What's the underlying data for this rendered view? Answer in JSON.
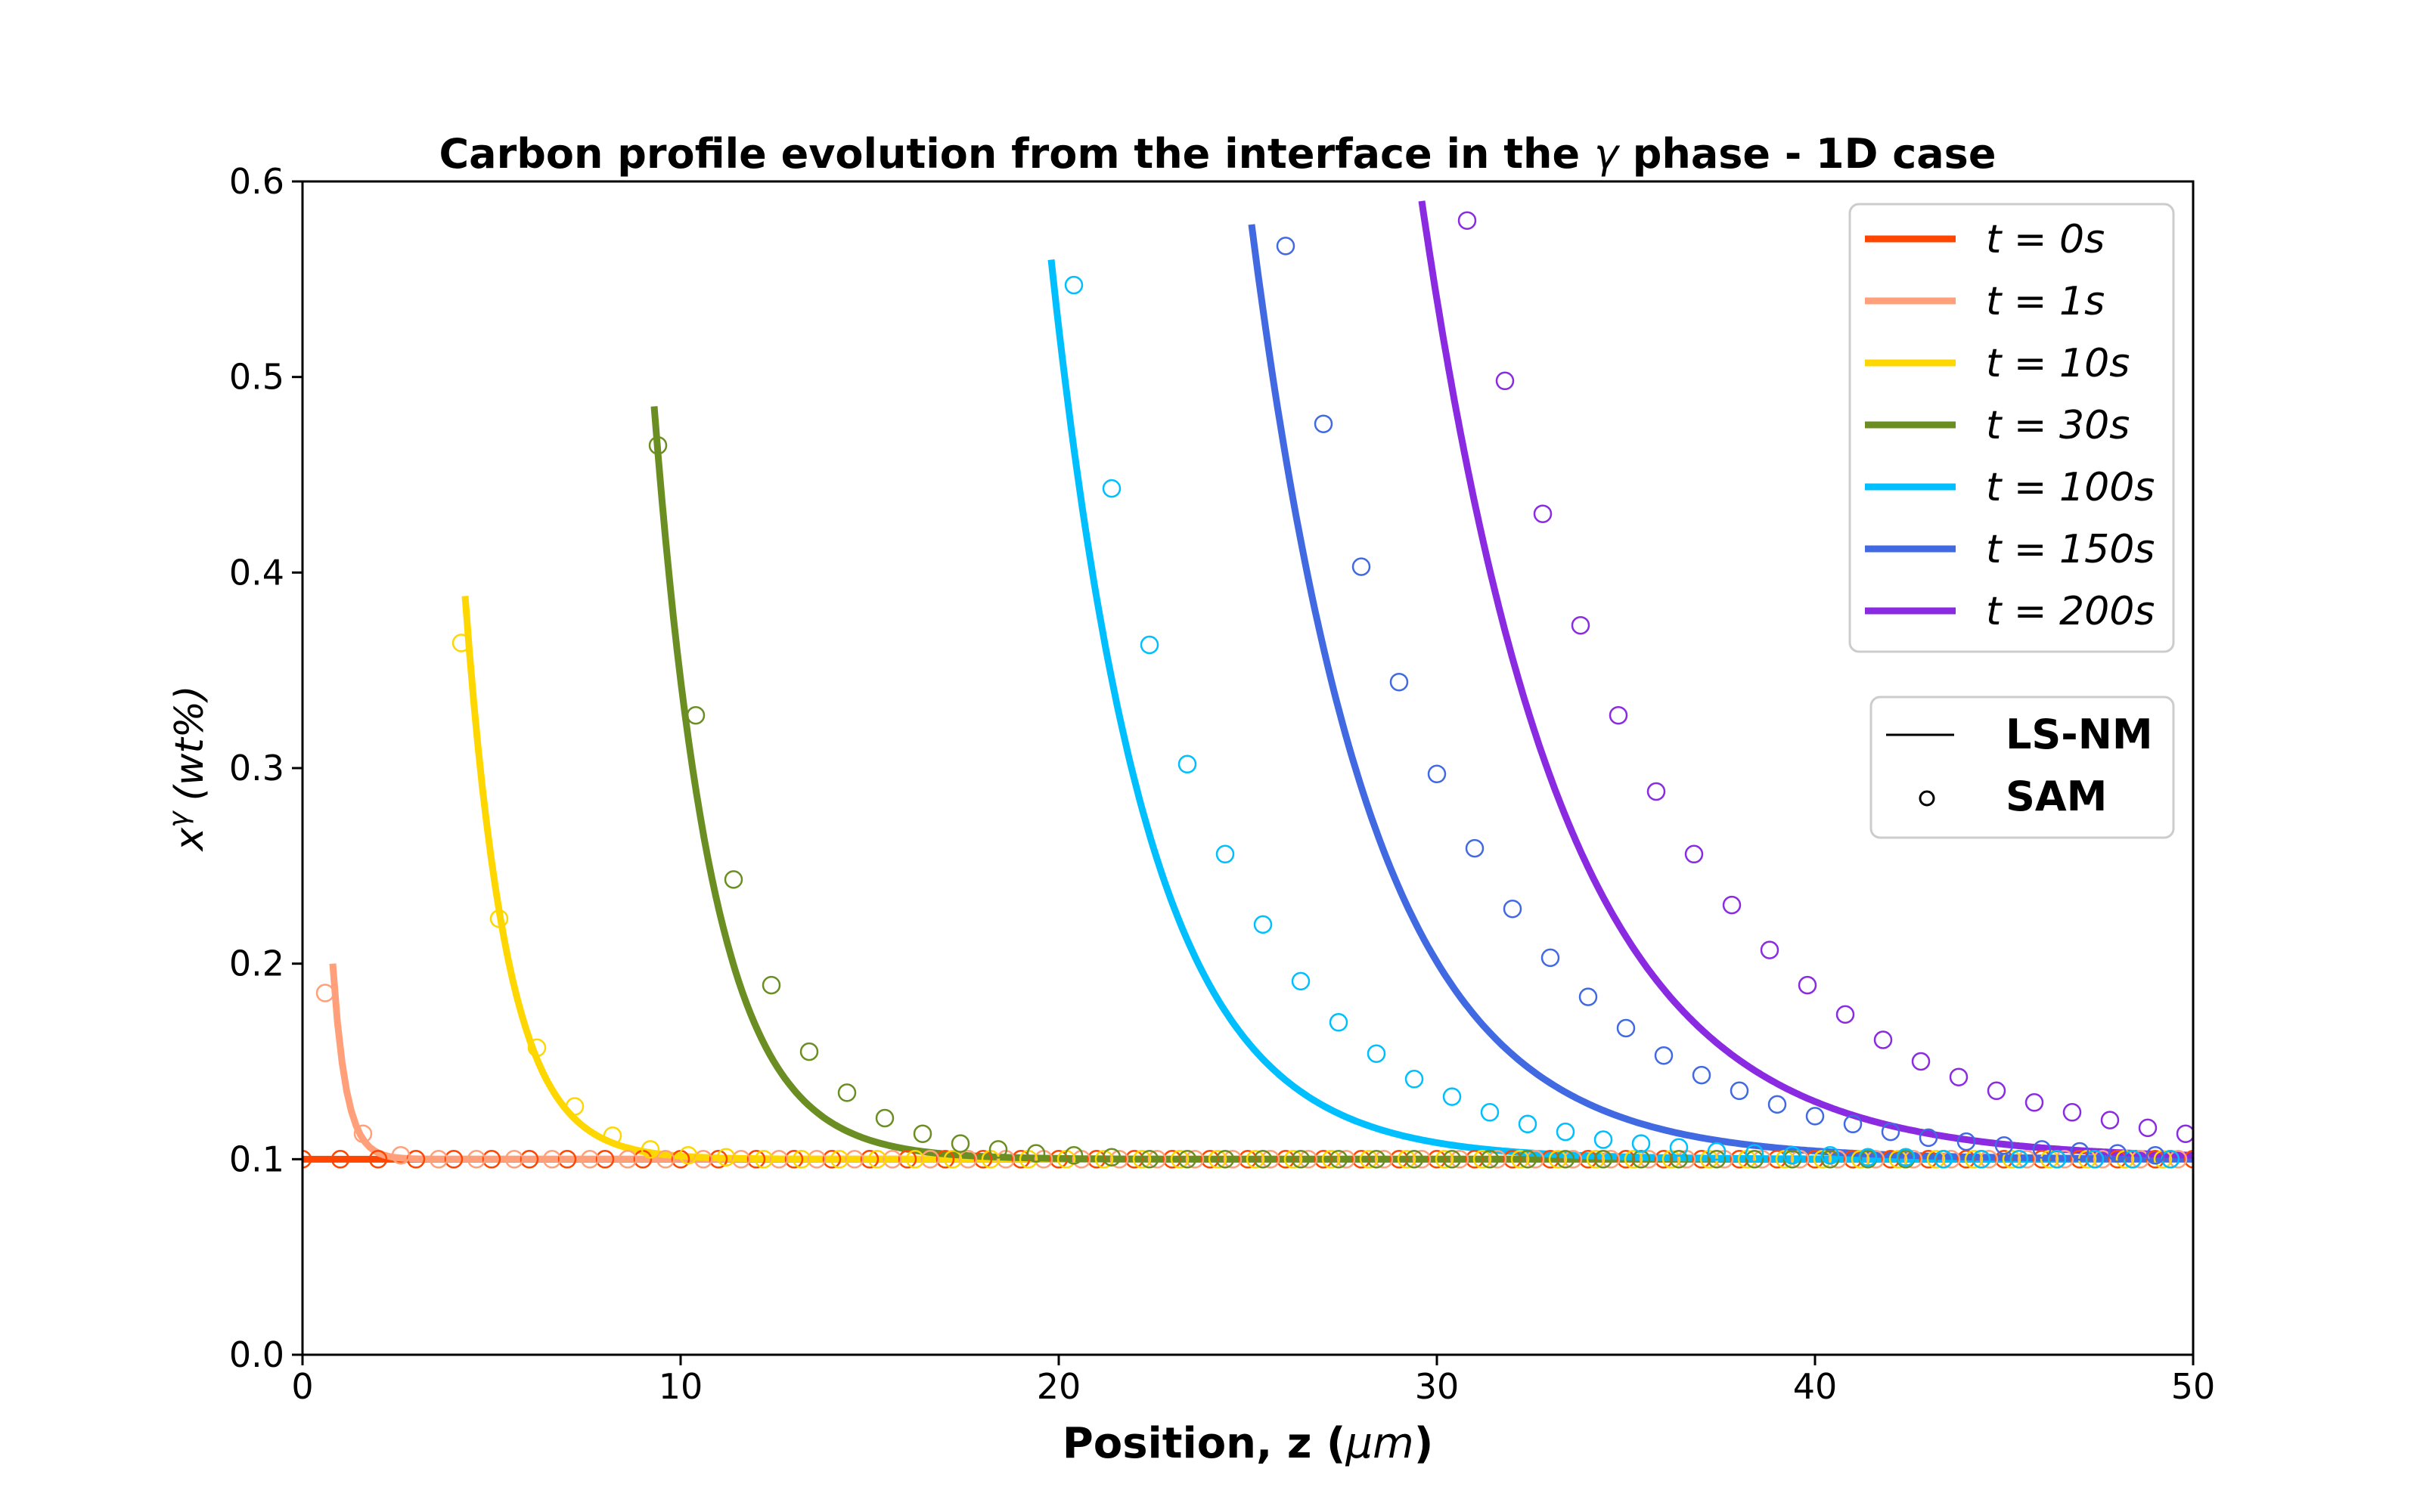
{
  "chart_data": {
    "type": "line",
    "title_prefix": "Carbon profile evolution from the interface in the",
    "title_symbol": "γ",
    "title_suffix": "phase - 1D case",
    "xlabel_prefix": "Position, z (",
    "xlabel_unit": "μm",
    "xlabel_suffix": ")",
    "ylabel_var": "x",
    "ylabel_sup": "γ",
    "ylabel_unit": "(wt%)",
    "xlim": [
      0,
      50
    ],
    "ylim": [
      0.0,
      0.6
    ],
    "xticks": [
      0,
      10,
      20,
      30,
      40,
      50
    ],
    "yticks": [
      0.0,
      0.1,
      0.2,
      0.3,
      0.4,
      0.5,
      0.6
    ],
    "xtick_labels": [
      "0",
      "10",
      "20",
      "30",
      "40",
      "50"
    ],
    "ytick_labels": [
      "0.0",
      "0.1",
      "0.2",
      "0.3",
      "0.4",
      "0.5",
      "0.6"
    ],
    "baseline": 0.1,
    "legend_position": "top-right",
    "series": [
      {
        "name": "t = 0s",
        "t_label": "0s",
        "color": "#ff4500",
        "front": 0.0,
        "peak": 0.1,
        "decay_length": 1.0,
        "markers_x": [
          0.0,
          1.0,
          2.0,
          3.0,
          4.0,
          5.0,
          6.0,
          7.0,
          8.0,
          9.0,
          10.0,
          11.0,
          12.0,
          13.0,
          14.0,
          15.0,
          16.0,
          17.0,
          18.0,
          19.0,
          20.0,
          21.0,
          22.0,
          23.0,
          24.0,
          25.0,
          26.0,
          27.0,
          28.0,
          29.0,
          30.0,
          31.0,
          32.0,
          33.0,
          34.0,
          35.0,
          36.0,
          37.0,
          38.0,
          39.0,
          40.0,
          41.0,
          42.0,
          43.0,
          44.0,
          45.0,
          46.0,
          47.0,
          48.0,
          49.0,
          50.0
        ],
        "markers_y": [
          0.1,
          0.1,
          0.1,
          0.1,
          0.1,
          0.1,
          0.1,
          0.1,
          0.1,
          0.1,
          0.1,
          0.1,
          0.1,
          0.1,
          0.1,
          0.1,
          0.1,
          0.1,
          0.1,
          0.1,
          0.1,
          0.1,
          0.1,
          0.1,
          0.1,
          0.1,
          0.1,
          0.1,
          0.1,
          0.1,
          0.1,
          0.1,
          0.1,
          0.1,
          0.1,
          0.1,
          0.1,
          0.1,
          0.1,
          0.1,
          0.1,
          0.1,
          0.1,
          0.1,
          0.1,
          0.1,
          0.1,
          0.1,
          0.1,
          0.1,
          0.1
        ]
      },
      {
        "name": "t = 1s",
        "t_label": "1s",
        "color": "#ffa07a",
        "front": 0.8,
        "peak": 0.2,
        "decay_length": 0.35,
        "markers_x": [
          0.6,
          1.6,
          2.6,
          3.6,
          4.6,
          5.6,
          6.6,
          7.6,
          8.6,
          9.6,
          10.6,
          11.6,
          12.6,
          13.6,
          14.6,
          15.6,
          16.6,
          17.6,
          18.6,
          19.6,
          20.6,
          21.6,
          22.6,
          23.6,
          24.6,
          25.6,
          26.6,
          27.6,
          28.6,
          29.6,
          30.6,
          31.6,
          32.6,
          33.6,
          34.6,
          35.6,
          36.6,
          37.6,
          38.6,
          39.6,
          40.6,
          41.6,
          42.6,
          43.6,
          44.6,
          45.6,
          46.6,
          47.6,
          48.6,
          49.6
        ],
        "markers_y": [
          0.185,
          0.113,
          0.102,
          0.1,
          0.1,
          0.1,
          0.1,
          0.1,
          0.1,
          0.1,
          0.1,
          0.1,
          0.1,
          0.1,
          0.1,
          0.1,
          0.1,
          0.1,
          0.1,
          0.1,
          0.1,
          0.1,
          0.1,
          0.1,
          0.1,
          0.1,
          0.1,
          0.1,
          0.1,
          0.1,
          0.1,
          0.1,
          0.1,
          0.1,
          0.1,
          0.1,
          0.1,
          0.1,
          0.1,
          0.1,
          0.1,
          0.1,
          0.1,
          0.1,
          0.1,
          0.1,
          0.1,
          0.1,
          0.1,
          0.1
        ]
      },
      {
        "name": "t = 10s",
        "t_label": "10s",
        "color": "#ffd700",
        "front": 4.3,
        "peak": 0.388,
        "decay_length": 1.1,
        "markers_x": [
          4.2,
          5.2,
          6.2,
          7.2,
          8.2,
          9.2,
          10.2,
          11.2,
          12.2,
          13.2,
          14.2,
          15.2,
          16.2,
          17.2,
          18.2,
          19.2,
          20.2,
          21.2,
          22.2,
          23.2,
          24.2,
          25.2,
          26.2,
          27.2,
          28.2,
          29.2,
          30.2,
          31.2,
          32.2,
          33.2,
          34.2,
          35.2,
          36.2,
          37.2,
          38.2,
          39.2,
          40.2,
          41.2,
          42.2,
          43.2,
          44.2,
          45.2,
          46.2,
          47.2,
          48.2,
          49.2
        ],
        "markers_y": [
          0.364,
          0.223,
          0.157,
          0.127,
          0.112,
          0.105,
          0.102,
          0.101,
          0.1,
          0.1,
          0.1,
          0.1,
          0.1,
          0.1,
          0.1,
          0.1,
          0.1,
          0.1,
          0.1,
          0.1,
          0.1,
          0.1,
          0.1,
          0.1,
          0.1,
          0.1,
          0.1,
          0.1,
          0.1,
          0.1,
          0.1,
          0.1,
          0.1,
          0.1,
          0.1,
          0.1,
          0.1,
          0.1,
          0.1,
          0.1,
          0.1,
          0.1,
          0.1,
          0.1,
          0.1,
          0.1
        ]
      },
      {
        "name": "t = 30s",
        "t_label": "30s",
        "color": "#6b8e23",
        "front": 9.3,
        "peak": 0.485,
        "decay_length": 1.55,
        "markers_x": [
          9.4,
          10.4,
          11.4,
          12.4,
          13.4,
          14.4,
          15.4,
          16.4,
          17.4,
          18.4,
          19.4,
          20.4,
          21.4,
          22.4,
          23.4,
          24.4,
          25.4,
          26.4,
          27.4,
          28.4,
          29.4,
          30.4,
          31.4,
          32.4,
          33.4,
          34.4,
          35.4,
          36.4,
          37.4,
          38.4,
          39.4,
          40.4,
          41.4,
          42.4,
          43.4,
          44.4,
          45.4,
          46.4,
          47.4,
          48.4,
          49.4
        ],
        "markers_y": [
          0.465,
          0.327,
          0.243,
          0.189,
          0.155,
          0.134,
          0.121,
          0.113,
          0.108,
          0.105,
          0.103,
          0.102,
          0.101,
          0.1,
          0.1,
          0.1,
          0.1,
          0.1,
          0.1,
          0.1,
          0.1,
          0.1,
          0.1,
          0.1,
          0.1,
          0.1,
          0.1,
          0.1,
          0.1,
          0.1,
          0.1,
          0.1,
          0.1,
          0.1,
          0.1,
          0.1,
          0.1,
          0.1,
          0.1,
          0.1,
          0.1
        ]
      },
      {
        "name": "t = 100s",
        "t_label": "100s",
        "color": "#00bfff",
        "front": 19.8,
        "peak": 0.56,
        "decay_length": 2.55,
        "markers_x": [
          20.4,
          21.4,
          22.4,
          23.4,
          24.4,
          25.4,
          26.4,
          27.4,
          28.4,
          29.4,
          30.4,
          31.4,
          32.4,
          33.4,
          34.4,
          35.4,
          36.4,
          37.4,
          38.4,
          39.4,
          40.4,
          41.4,
          42.4,
          43.4,
          44.4,
          45.4,
          46.4,
          47.4,
          48.4,
          49.4
        ],
        "markers_y": [
          0.547,
          0.443,
          0.363,
          0.302,
          0.256,
          0.22,
          0.191,
          0.17,
          0.154,
          0.141,
          0.132,
          0.124,
          0.118,
          0.114,
          0.11,
          0.108,
          0.106,
          0.104,
          0.103,
          0.102,
          0.102,
          0.101,
          0.101,
          0.1,
          0.1,
          0.1,
          0.1,
          0.1,
          0.1,
          0.1
        ]
      },
      {
        "name": "t = 150s",
        "t_label": "150s",
        "color": "#4169e1",
        "front": 25.1,
        "peak": 0.578,
        "decay_length": 3.15,
        "markers_x": [
          26.0,
          27.0,
          28.0,
          29.0,
          30.0,
          31.0,
          32.0,
          33.0,
          34.0,
          35.0,
          36.0,
          37.0,
          38.0,
          39.0,
          40.0,
          41.0,
          42.0,
          43.0,
          44.0,
          45.0,
          46.0,
          47.0,
          48.0,
          49.0
        ],
        "markers_y": [
          0.567,
          0.476,
          0.403,
          0.344,
          0.297,
          0.259,
          0.228,
          0.203,
          0.183,
          0.167,
          0.153,
          0.143,
          0.135,
          0.128,
          0.122,
          0.118,
          0.114,
          0.111,
          0.109,
          0.107,
          0.105,
          0.104,
          0.103,
          0.102
        ]
      },
      {
        "name": "t = 200s",
        "t_label": "200s",
        "color": "#8a2be2",
        "front": 29.6,
        "peak": 0.59,
        "decay_length": 3.7,
        "markers_x": [
          30.8,
          31.8,
          32.8,
          33.8,
          34.8,
          35.8,
          36.8,
          37.8,
          38.8,
          39.8,
          40.8,
          41.8,
          42.8,
          43.8,
          44.8,
          45.8,
          46.8,
          47.8,
          48.8,
          49.8
        ],
        "markers_y": [
          0.58,
          0.498,
          0.43,
          0.373,
          0.327,
          0.288,
          0.256,
          0.23,
          0.207,
          0.189,
          0.174,
          0.161,
          0.15,
          0.142,
          0.135,
          0.129,
          0.124,
          0.12,
          0.116,
          0.113
        ]
      }
    ],
    "method_legend": [
      {
        "label": "LS-NM",
        "marker": "line"
      },
      {
        "label": "SAM",
        "marker": "circle"
      }
    ]
  }
}
